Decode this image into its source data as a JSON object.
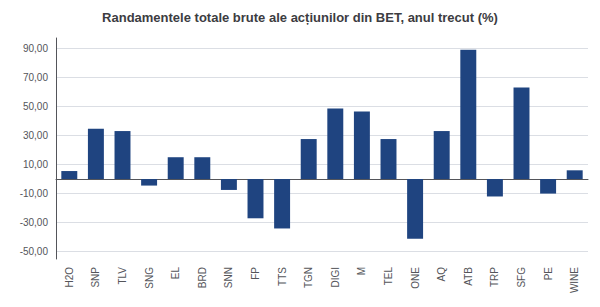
{
  "chart_data": {
    "type": "bar",
    "title": "Randamentele totale brute ale acțiunilor din BET, anul trecut (%)",
    "categories": [
      "H2O",
      "SNP",
      "TLV",
      "SNG",
      "EL",
      "BRD",
      "SNN",
      "FP",
      "TTS",
      "TGN",
      "DIGI",
      "M",
      "TEL",
      "ONE",
      "AQ",
      "ATB",
      "TRP",
      "SFG",
      "PE",
      "WINE"
    ],
    "values": [
      5.5,
      34.5,
      33.0,
      -4.5,
      15.0,
      15.0,
      -7.5,
      -27.0,
      -34.0,
      27.5,
      48.5,
      46.5,
      27.5,
      -41.0,
      33.0,
      89.0,
      -12.0,
      63.0,
      -10.0,
      6.0
    ],
    "color": "#1F4480",
    "ylim": [
      -55,
      97
    ],
    "yticks": [
      {
        "value": -50,
        "label": "-50,00"
      },
      {
        "value": -30,
        "label": "-30,00"
      },
      {
        "value": -10,
        "label": "-10,00"
      },
      {
        "value": 10,
        "label": "10,00"
      },
      {
        "value": 30,
        "label": "30,00"
      },
      {
        "value": 50,
        "label": "50,00"
      },
      {
        "value": 70,
        "label": "70,00"
      },
      {
        "value": 90,
        "label": "90,00"
      }
    ],
    "grid": true
  }
}
